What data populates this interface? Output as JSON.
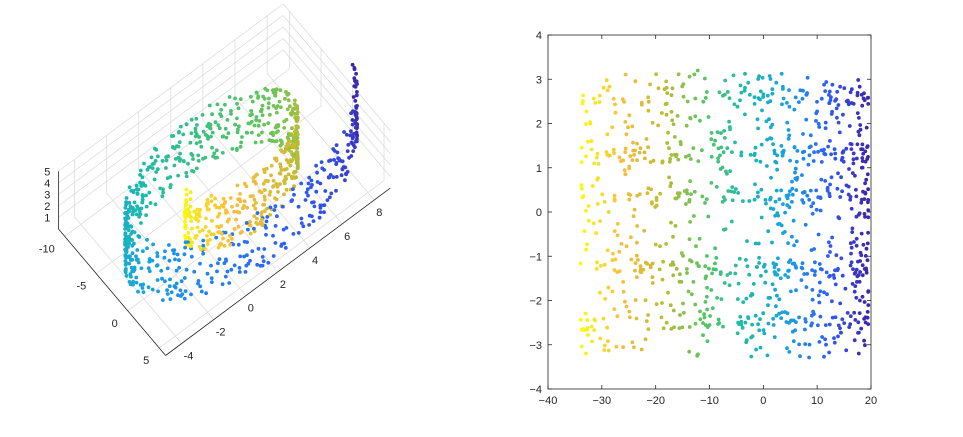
{
  "chart_data": [
    {
      "type": "scatter3d",
      "title": "",
      "xlabel": "",
      "ylabel": "",
      "zlabel": "",
      "x_ticks": [
        "-10",
        "-5",
        "0",
        "5"
      ],
      "y_ticks": [
        "-4",
        "-2",
        "0",
        "2",
        "4",
        "6",
        "8"
      ],
      "z_ticks": [
        "1",
        "2",
        "3",
        "4",
        "5"
      ],
      "xlim": [
        -11,
        6
      ],
      "ylim": [
        -5,
        9
      ],
      "zlim": [
        0,
        5
      ],
      "grid": true,
      "colormap": [
        "#3e26a8",
        "#2f5ef7",
        "#18a2e0",
        "#1bbbab",
        "#58c561",
        "#bfbc32",
        "#f8bd3d",
        "#f9fb0e"
      ],
      "shape": "swiss roll",
      "t_range": [
        4.7,
        14.1
      ],
      "z_range": [
        0.0,
        5.0
      ]
    },
    {
      "type": "scatter",
      "title": "",
      "xlabel": "",
      "ylabel": "",
      "x_ticks": [
        "−40",
        "−30",
        "−20",
        "−10",
        "0",
        "10",
        "20"
      ],
      "y_ticks": [
        "−4",
        "−3",
        "−2",
        "−1",
        "0",
        "1",
        "2",
        "3",
        "4"
      ],
      "xlim": [
        -40,
        20
      ],
      "ylim": [
        -4,
        4
      ],
      "grid": false,
      "colormap": [
        "#3e26a8",
        "#2f5ef7",
        "#18a2e0",
        "#1bbbab",
        "#58c561",
        "#bfbc32",
        "#f8bd3d",
        "#f9fb0e"
      ],
      "x_range": [
        -34,
        19.5
      ],
      "y_range": [
        -3.3,
        3.2
      ],
      "cluster_rows": [
        -2.5,
        -1.3,
        0.35,
        1.3,
        2.6
      ]
    }
  ]
}
